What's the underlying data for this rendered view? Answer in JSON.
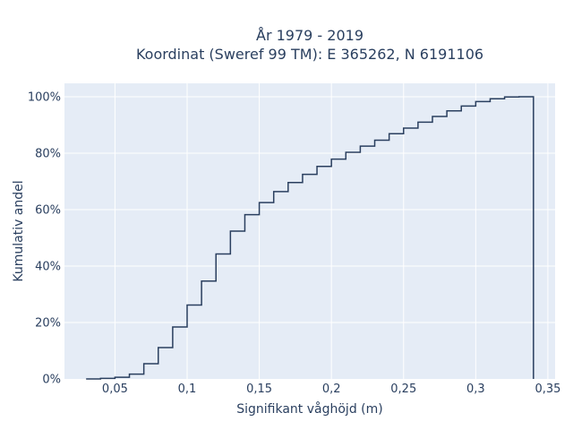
{
  "chart_data": {
    "type": "line",
    "subtype": "cumulative-step",
    "title_line1": "År 1979 - 2019",
    "title_line2": "Koordinat (Sweref 99 TM): E 365262, N 6191106",
    "xlabel": "Signifikant våghöjd (m)",
    "ylabel": "Kumulativ andel",
    "xlim": [
      0.015,
      0.355
    ],
    "ylim": [
      0,
      1.0
    ],
    "x_ticks": [
      0.05,
      0.1,
      0.15,
      0.2,
      0.25,
      0.3,
      0.35
    ],
    "x_tick_labels": [
      "0,05",
      "0,1",
      "0,15",
      "0,2",
      "0,25",
      "0,3",
      "0,35"
    ],
    "y_ticks": [
      0,
      0.2,
      0.4,
      0.6,
      0.8,
      1.0
    ],
    "y_tick_labels": [
      "0%",
      "20%",
      "40%",
      "60%",
      "80%",
      "100%"
    ],
    "grid": true,
    "colors": {
      "line": "#2a3f5f",
      "plot_bg": "#e5ecf6",
      "grid": "#ffffff",
      "text": "#2a3f5f"
    },
    "series": [
      {
        "edges": [
          0.03,
          0.04,
          0.05,
          0.06,
          0.07,
          0.08,
          0.09,
          0.1,
          0.11,
          0.12,
          0.13,
          0.14,
          0.15,
          0.16,
          0.17,
          0.18,
          0.19,
          0.2,
          0.21,
          0.22,
          0.23,
          0.24,
          0.25,
          0.26,
          0.27,
          0.28,
          0.29,
          0.3,
          0.31,
          0.32,
          0.33,
          0.34
        ],
        "values": [
          0.0,
          0.002,
          0.006,
          0.017,
          0.054,
          0.111,
          0.184,
          0.262,
          0.347,
          0.443,
          0.524,
          0.582,
          0.625,
          0.664,
          0.696,
          0.725,
          0.753,
          0.779,
          0.803,
          0.825,
          0.846,
          0.869,
          0.889,
          0.91,
          0.93,
          0.95,
          0.967,
          0.983,
          0.993,
          0.999,
          1.0
        ]
      }
    ]
  }
}
